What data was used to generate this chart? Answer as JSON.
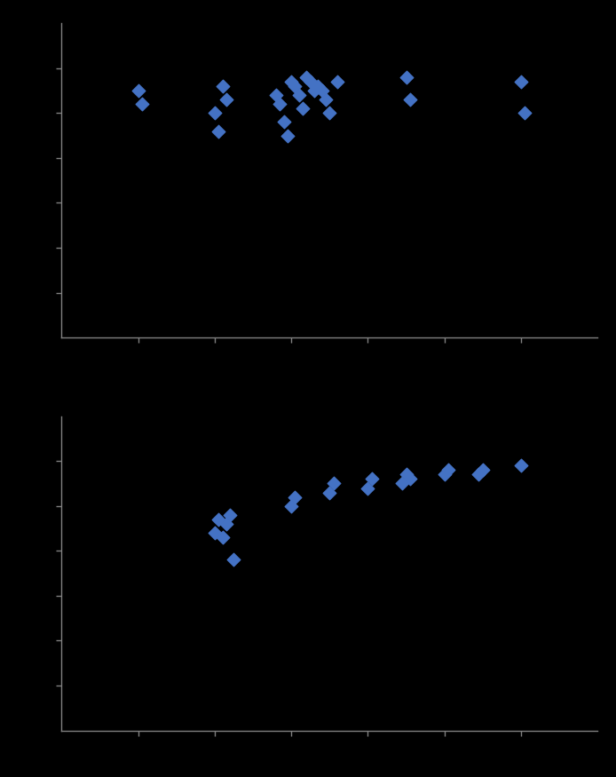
{
  "chart1": {
    "x": [
      1.0,
      1.05,
      2.0,
      2.05,
      2.1,
      2.15,
      2.8,
      2.85,
      2.9,
      2.95,
      3.0,
      3.05,
      3.1,
      3.15,
      3.2,
      3.25,
      3.3,
      3.35,
      3.4,
      3.45,
      3.5,
      3.6,
      4.5,
      4.55,
      6.0,
      6.05
    ],
    "y": [
      55,
      52,
      50,
      46,
      56,
      53,
      54,
      52,
      48,
      45,
      57,
      56,
      54,
      51,
      58,
      57,
      55,
      56,
      55,
      53,
      50,
      57,
      58,
      53,
      57,
      50
    ],
    "xlim": [
      0,
      7
    ],
    "ylim": [
      0,
      70
    ],
    "xticks": [
      1,
      2,
      3,
      4,
      5,
      6
    ],
    "yticks": [
      10,
      20,
      30,
      40,
      50,
      60
    ]
  },
  "chart2": {
    "x": [
      2.0,
      2.05,
      2.1,
      2.15,
      2.2,
      2.25,
      3.0,
      3.05,
      3.5,
      3.55,
      4.0,
      4.05,
      4.45,
      4.5,
      4.55,
      5.0,
      5.05,
      5.45,
      5.5,
      6.0
    ],
    "y": [
      44,
      47,
      43,
      46,
      48,
      38,
      50,
      52,
      53,
      55,
      54,
      56,
      55,
      57,
      56,
      57,
      58,
      57,
      58,
      59
    ],
    "xlim": [
      0,
      7
    ],
    "ylim": [
      0,
      70
    ],
    "xticks": [
      1,
      2,
      3,
      4,
      5,
      6
    ],
    "yticks": [
      10,
      20,
      30,
      40,
      50,
      60
    ]
  },
  "marker_color": "#4472C4",
  "marker": "D",
  "marker_size": 55,
  "bg_color": "#000000",
  "spine_color": "#808080",
  "tick_color": "#808080",
  "figsize": [
    6.94,
    8.75
  ],
  "dpi": 100
}
